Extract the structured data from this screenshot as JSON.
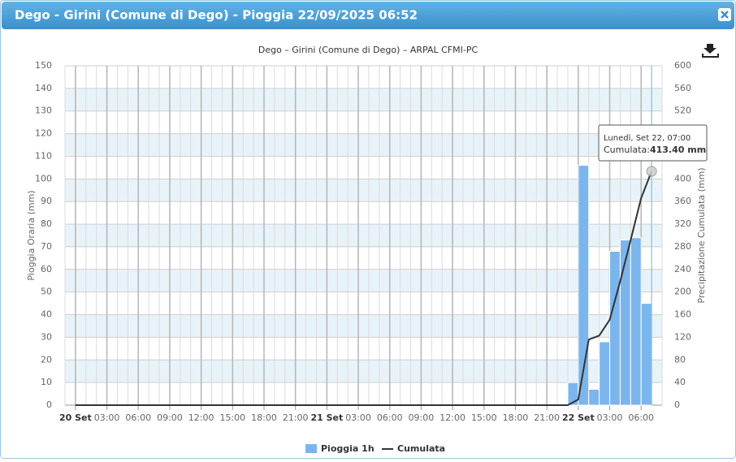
{
  "window_title": "Dego - Girini (Comune di Dego) - Pioggia 22/09/2025 06:52",
  "chart_data": {
    "type": "bar-line",
    "title": "Dego – Girini (Comune di Dego) – ARPAL CFMI-PC",
    "y_label": "Pioggia Oraria (mm)",
    "y2_label": "Precipitazione Cumulata (mm)",
    "xlim": [
      -1,
      56
    ],
    "xticks": [
      {
        "value": 0,
        "label": "20 Set"
      },
      {
        "value": 3,
        "label": "03:00"
      },
      {
        "value": 6,
        "label": "06:00"
      },
      {
        "value": 9,
        "label": "09:00"
      },
      {
        "value": 12,
        "label": "12:00"
      },
      {
        "value": 15,
        "label": "15:00"
      },
      {
        "value": 18,
        "label": "18:00"
      },
      {
        "value": 21,
        "label": "21:00"
      },
      {
        "value": 24,
        "label": "21 Set"
      },
      {
        "value": 27,
        "label": "03:00"
      },
      {
        "value": 30,
        "label": "06:00"
      },
      {
        "value": 33,
        "label": "09:00"
      },
      {
        "value": 36,
        "label": "12:00"
      },
      {
        "value": 39,
        "label": "15:00"
      },
      {
        "value": 42,
        "label": "18:00"
      },
      {
        "value": 45,
        "label": "21:00"
      },
      {
        "value": 48,
        "label": "22 Set"
      },
      {
        "value": 51,
        "label": "03:00"
      },
      {
        "value": 54,
        "label": "06:00"
      }
    ],
    "ylim": [
      0,
      150
    ],
    "yticks": [
      0,
      10,
      20,
      30,
      40,
      50,
      60,
      70,
      80,
      90,
      100,
      110,
      120,
      130,
      140,
      150
    ],
    "y2lim": [
      0,
      600
    ],
    "y2ticks": [
      0,
      40,
      80,
      120,
      160,
      200,
      240,
      280,
      320,
      360,
      400,
      440,
      480,
      520,
      560,
      600
    ],
    "grid": true,
    "series": [
      {
        "name": "Pioggia 1h",
        "type": "bar",
        "color": "#7cb5ec",
        "x": [
          48,
          49,
          50,
          51,
          52,
          53,
          54,
          55
        ],
        "values": [
          10,
          106,
          7,
          28,
          68,
          73,
          74,
          45
        ]
      },
      {
        "name": "Cumulata",
        "type": "line",
        "axis": "y2",
        "color": "#333333",
        "x": [
          0,
          47,
          48,
          49,
          50,
          51,
          52,
          53,
          54,
          55
        ],
        "values": [
          0,
          0,
          10,
          116,
          123,
          151,
          219,
          292,
          366,
          413.4
        ]
      }
    ],
    "tooltip": {
      "title": "Lunedì, Set 22, 07:00",
      "label": "Cumulata:",
      "value": "413.40 mm"
    }
  }
}
